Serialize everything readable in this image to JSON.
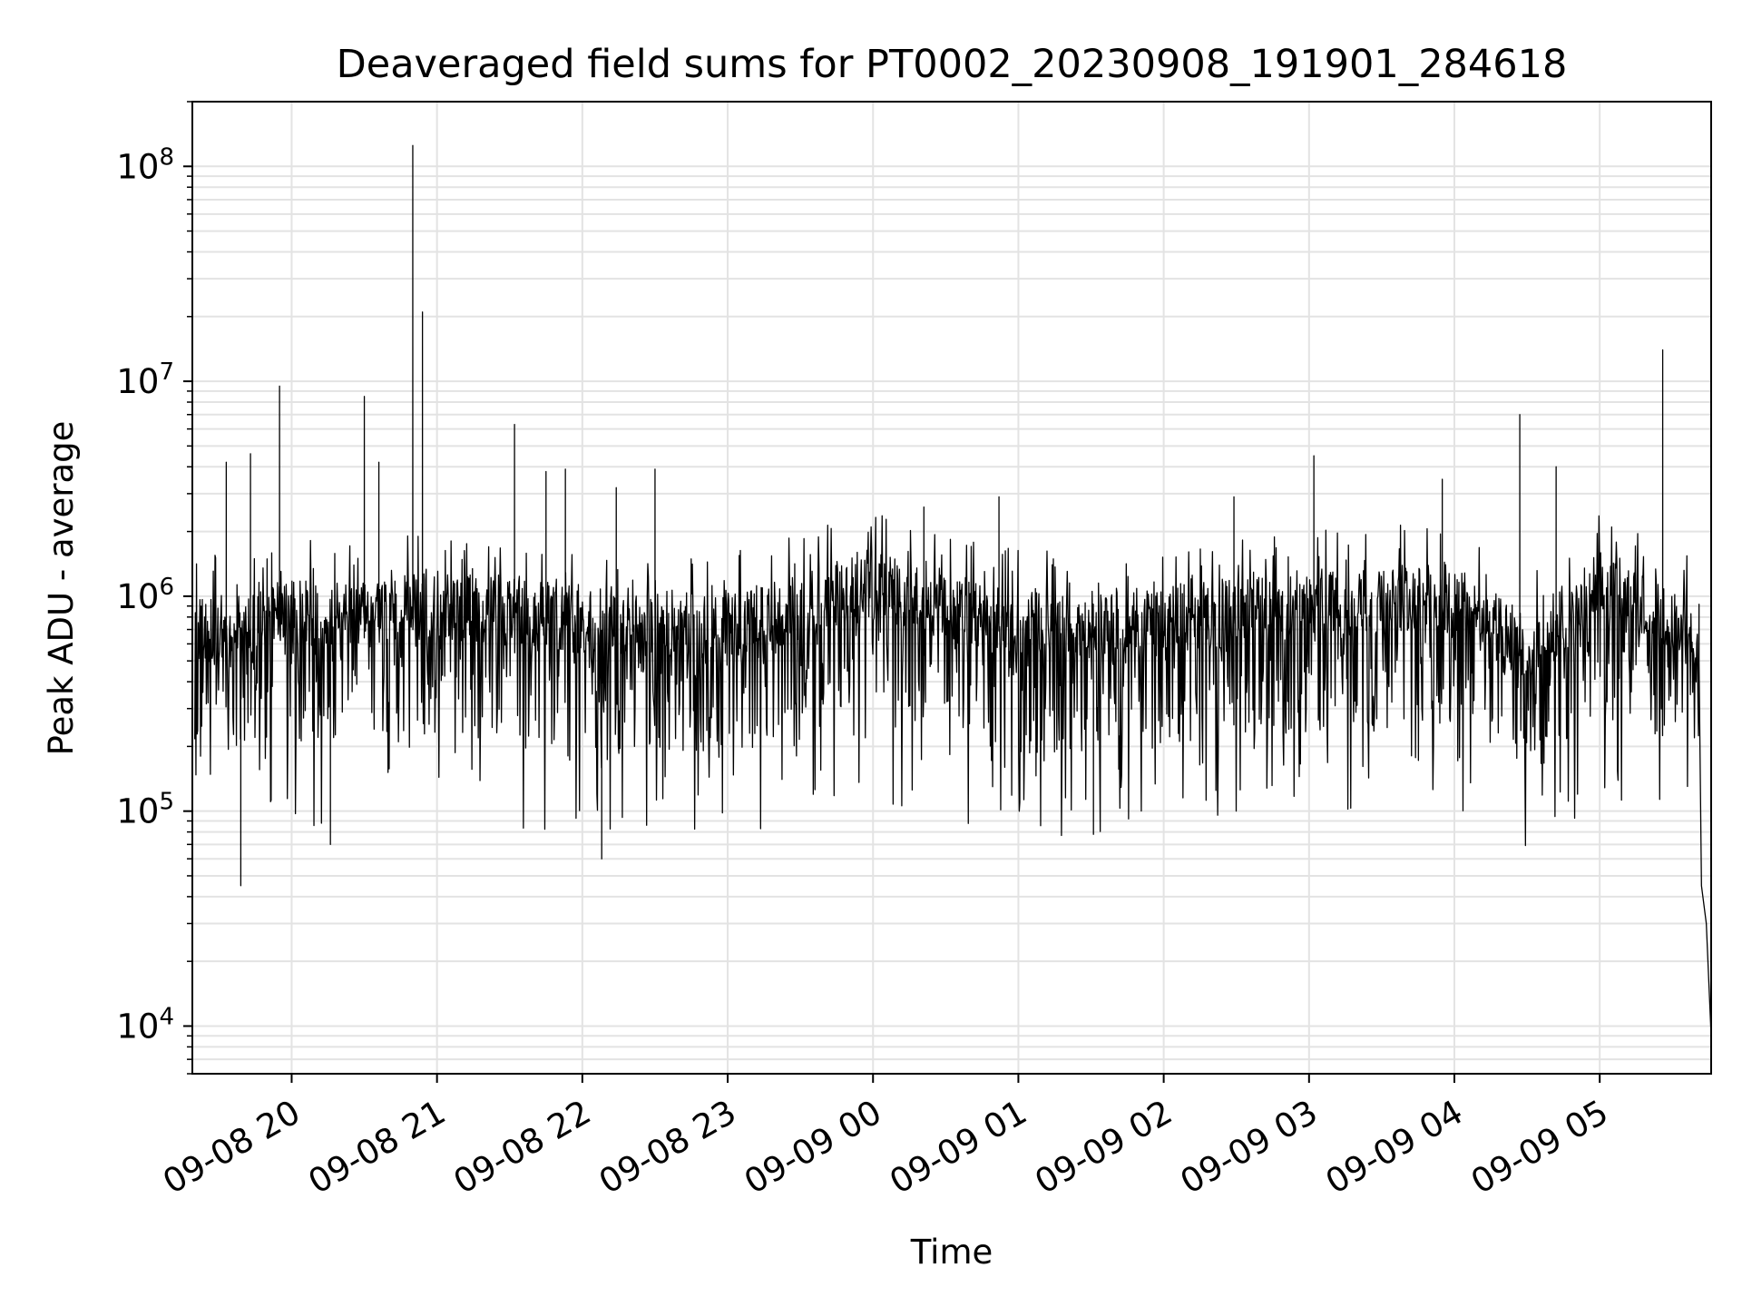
{
  "chart_data": {
    "type": "line",
    "title": "Deaveraged field sums for PT0002_20230908_191901_284618",
    "xlabel": "Time",
    "ylabel": "Peak ADU - average",
    "yscale": "log",
    "ylim": [
      6000,
      200000000
    ],
    "xlim": [
      "2023-09-08 19:19",
      "2023-09-09 05:46"
    ],
    "grid": true,
    "line_color": "#000000",
    "grid_color": "#e3e3e3",
    "x_ticks": [
      {
        "t": "2023-09-08 20:00",
        "label": "09-08 20"
      },
      {
        "t": "2023-09-08 21:00",
        "label": "09-08 21"
      },
      {
        "t": "2023-09-08 22:00",
        "label": "09-08 22"
      },
      {
        "t": "2023-09-08 23:00",
        "label": "09-08 23"
      },
      {
        "t": "2023-09-09 00:00",
        "label": "09-09 00"
      },
      {
        "t": "2023-09-09 01:00",
        "label": "09-09 01"
      },
      {
        "t": "2023-09-09 02:00",
        "label": "09-09 02"
      },
      {
        "t": "2023-09-09 03:00",
        "label": "09-09 03"
      },
      {
        "t": "2023-09-09 04:00",
        "label": "09-09 04"
      },
      {
        "t": "2023-09-09 05:00",
        "label": "09-09 05"
      }
    ],
    "y_ticks": [
      {
        "value": 10000,
        "base": "10",
        "exp": "4"
      },
      {
        "value": 100000,
        "base": "10",
        "exp": "5"
      },
      {
        "value": 1000000,
        "base": "10",
        "exp": "6"
      },
      {
        "value": 10000000,
        "base": "10",
        "exp": "7"
      },
      {
        "value": 100000000,
        "base": "10",
        "exp": "8"
      }
    ],
    "series": [
      {
        "baseline": [
          {
            "t": "2023-09-08 19:20",
            "value": 600000
          },
          {
            "t": "2023-09-08 19:45",
            "value": 750000
          },
          {
            "t": "2023-09-08 20:30",
            "value": 750000
          },
          {
            "t": "2023-09-08 21:00",
            "value": 800000
          },
          {
            "t": "2023-09-08 22:00",
            "value": 700000
          },
          {
            "t": "2023-09-08 23:00",
            "value": 650000
          },
          {
            "t": "2023-09-09 00:00",
            "value": 1000000
          },
          {
            "t": "2023-09-09 01:00",
            "value": 650000
          },
          {
            "t": "2023-09-09 02:00",
            "value": 700000
          },
          {
            "t": "2023-09-09 03:00",
            "value": 800000
          },
          {
            "t": "2023-09-09 04:00",
            "value": 900000
          },
          {
            "t": "2023-09-09 04:30",
            "value": 500000
          },
          {
            "t": "2023-09-09 05:00",
            "value": 1000000
          },
          {
            "t": "2023-09-09 05:40",
            "value": 600000
          }
        ],
        "spikes": [
          {
            "t": "2023-09-08 19:33",
            "value": 4200000
          },
          {
            "t": "2023-09-08 19:39",
            "value": 45000
          },
          {
            "t": "2023-09-08 19:43",
            "value": 4600000
          },
          {
            "t": "2023-09-08 19:55",
            "value": 9500000
          },
          {
            "t": "2023-09-08 20:30",
            "value": 8500000
          },
          {
            "t": "2023-09-08 20:16",
            "value": 70000
          },
          {
            "t": "2023-09-08 20:36",
            "value": 4200000
          },
          {
            "t": "2023-09-08 20:50",
            "value": 125000000
          },
          {
            "t": "2023-09-08 20:54",
            "value": 21000000
          },
          {
            "t": "2023-09-08 21:32",
            "value": 6300000
          },
          {
            "t": "2023-09-08 21:45",
            "value": 3800000
          },
          {
            "t": "2023-09-08 21:53",
            "value": 3900000
          },
          {
            "t": "2023-09-08 22:14",
            "value": 3200000
          },
          {
            "t": "2023-09-08 22:08",
            "value": 60000
          },
          {
            "t": "2023-09-08 22:30",
            "value": 3900000
          },
          {
            "t": "2023-09-09 00:21",
            "value": 2600000
          },
          {
            "t": "2023-09-09 00:52",
            "value": 2900000
          },
          {
            "t": "2023-09-09 01:31",
            "value": 78000
          },
          {
            "t": "2023-09-09 02:29",
            "value": 2900000
          },
          {
            "t": "2023-09-09 03:02",
            "value": 4500000
          },
          {
            "t": "2023-09-09 03:55",
            "value": 3500000
          },
          {
            "t": "2023-09-09 04:27",
            "value": 7000000
          },
          {
            "t": "2023-09-09 04:42",
            "value": 4000000
          },
          {
            "t": "2023-09-09 05:26",
            "value": 14000000
          }
        ],
        "tail": [
          {
            "t": "2023-09-09 05:41",
            "value": 500000
          },
          {
            "t": "2023-09-09 05:42",
            "value": 45000
          },
          {
            "t": "2023-09-09 05:44",
            "value": 30000
          },
          {
            "t": "2023-09-09 05:46",
            "value": 9000
          }
        ]
      }
    ]
  }
}
